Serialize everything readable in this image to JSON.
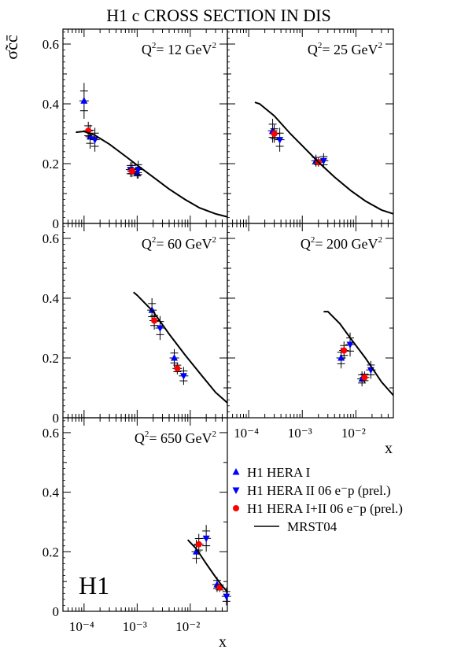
{
  "title": "H1 c  CROSS SECTION IN DIS",
  "ylabel": "σ̃cc̄",
  "xlabel": "x",
  "logo": "H1",
  "legend": [
    {
      "label": "H1 HERA I",
      "marker": "triangle-up",
      "color": "#0000ff"
    },
    {
      "label": "H1 HERA II 06 e⁻p (prel.)",
      "marker": "triangle-down",
      "color": "#0000ff"
    },
    {
      "label": "H1 HERA I+II 06 e⁻p (prel.)",
      "marker": "circle",
      "color": "#ff0000"
    },
    {
      "label": "MRST04",
      "marker": "line",
      "color": "#000000"
    }
  ],
  "y_ticks": [
    "0",
    "0.2",
    "0.4",
    "0.6"
  ],
  "x_ticks": [
    "10⁻⁴",
    "10⁻³",
    "10⁻²"
  ],
  "chart_data": [
    {
      "type": "scatter",
      "panel": "Q2=12",
      "label_base": "Q",
      "label_exp": "2",
      "label_value": "= 12 GeV",
      "label_unit_exp": "2",
      "xscale": "log",
      "xlim": [
        4e-05,
        0.05
      ],
      "ylim": [
        0,
        0.65
      ],
      "series": [
        {
          "name": "H1 HERA I",
          "points": [
            [
              0.0001,
              0.41,
              0.06
            ],
            [
              0.00013,
              0.29,
              0.04
            ],
            [
              0.0008,
              0.18,
              0.025
            ],
            [
              0.001,
              0.17,
              0.02
            ]
          ]
        },
        {
          "name": "H1 HERA II 06 e⁻p (prel.)",
          "points": [
            [
              0.00016,
              0.28,
              0.04
            ],
            [
              0.00075,
              0.18,
              0.025
            ],
            [
              0.00105,
              0.18,
              0.03
            ]
          ]
        },
        {
          "name": "H1 HERA I+II 06 e⁻p (prel.)",
          "points": [
            [
              0.00012,
              0.31,
              0.03
            ],
            [
              0.0008,
              0.175,
              0.015
            ]
          ]
        },
        {
          "name": "MRST04",
          "curve": [
            [
              7e-05,
              0.305
            ],
            [
              0.0001,
              0.308
            ],
            [
              0.00016,
              0.295
            ],
            [
              0.0003,
              0.265
            ],
            [
              0.0006,
              0.225
            ],
            [
              0.001,
              0.195
            ],
            [
              0.002,
              0.155
            ],
            [
              0.004,
              0.115
            ],
            [
              0.008,
              0.08
            ],
            [
              0.015,
              0.052
            ],
            [
              0.03,
              0.032
            ],
            [
              0.05,
              0.022
            ]
          ]
        }
      ]
    },
    {
      "type": "scatter",
      "panel": "Q2=25",
      "label_base": "Q",
      "label_exp": "2",
      "label_value": "= 25 GeV",
      "label_unit_exp": "2",
      "xscale": "log",
      "xlim": [
        4e-05,
        0.05
      ],
      "ylim": [
        0,
        0.65
      ],
      "series": [
        {
          "name": "H1 HERA I",
          "points": [
            [
              0.00028,
              0.31,
              0.04
            ],
            [
              0.0018,
              0.21,
              0.02
            ]
          ]
        },
        {
          "name": "H1 HERA II 06 e⁻p (prel.)",
          "points": [
            [
              0.00038,
              0.28,
              0.04
            ],
            [
              0.0025,
              0.21,
              0.025
            ]
          ]
        },
        {
          "name": "H1 HERA I+II 06 e⁻p (prel.)",
          "points": [
            [
              0.0003,
              0.3,
              0.03
            ],
            [
              0.002,
              0.205,
              0.015
            ]
          ]
        },
        {
          "name": "MRST04",
          "curve": [
            [
              0.00013,
              0.405
            ],
            [
              0.00016,
              0.4
            ],
            [
              0.0003,
              0.36
            ],
            [
              0.0006,
              0.3
            ],
            [
              0.001,
              0.26
            ],
            [
              0.002,
              0.205
            ],
            [
              0.004,
              0.155
            ],
            [
              0.008,
              0.11
            ],
            [
              0.015,
              0.075
            ],
            [
              0.03,
              0.045
            ],
            [
              0.05,
              0.032
            ]
          ]
        }
      ]
    },
    {
      "type": "scatter",
      "panel": "Q2=60",
      "label_base": "Q",
      "label_exp": "2",
      "label_value": "= 60 GeV",
      "label_unit_exp": "2",
      "xscale": "log",
      "xlim": [
        4e-05,
        0.05
      ],
      "ylim": [
        0,
        0.65
      ],
      "series": [
        {
          "name": "H1 HERA I",
          "points": [
            [
              0.0019,
              0.36,
              0.04
            ],
            [
              0.005,
              0.2,
              0.03
            ]
          ]
        },
        {
          "name": "H1 HERA II 06 e⁻p (prel.)",
          "points": [
            [
              0.0027,
              0.3,
              0.04
            ],
            [
              0.0075,
              0.14,
              0.03
            ]
          ]
        },
        {
          "name": "H1 HERA I+II 06 e⁻p (prel.)",
          "points": [
            [
              0.0021,
              0.325,
              0.03
            ],
            [
              0.0057,
              0.165,
              0.02
            ]
          ]
        },
        {
          "name": "MRST04",
          "curve": [
            [
              0.00085,
              0.42
            ],
            [
              0.001,
              0.41
            ],
            [
              0.002,
              0.355
            ],
            [
              0.004,
              0.28
            ],
            [
              0.008,
              0.21
            ],
            [
              0.015,
              0.15
            ],
            [
              0.03,
              0.085
            ],
            [
              0.05,
              0.05
            ]
          ]
        }
      ]
    },
    {
      "type": "scatter",
      "panel": "Q2=200",
      "label_base": "Q",
      "label_exp": "2",
      "label_value": "= 200 GeV",
      "label_unit_exp": "2",
      "xscale": "log",
      "xlim": [
        4e-05,
        0.05
      ],
      "ylim": [
        0,
        0.65
      ],
      "series": [
        {
          "name": "H1 HERA I",
          "points": [
            [
              0.0053,
              0.2,
              0.035
            ],
            [
              0.013,
              0.13,
              0.025
            ]
          ]
        },
        {
          "name": "H1 HERA II 06 e⁻p (prel.)",
          "points": [
            [
              0.0078,
              0.245,
              0.04
            ],
            [
              0.019,
              0.16,
              0.03
            ]
          ]
        },
        {
          "name": "H1 HERA I+II 06 e⁻p (prel.)",
          "points": [
            [
              0.006,
              0.225,
              0.03
            ],
            [
              0.0145,
              0.135,
              0.02
            ]
          ]
        },
        {
          "name": "MRST04",
          "curve": [
            [
              0.0025,
              0.355
            ],
            [
              0.003,
              0.355
            ],
            [
              0.005,
              0.315
            ],
            [
              0.008,
              0.265
            ],
            [
              0.015,
              0.2
            ],
            [
              0.03,
              0.12
            ],
            [
              0.05,
              0.075
            ]
          ]
        }
      ]
    },
    {
      "type": "scatter",
      "panel": "Q2=650",
      "label_base": "Q",
      "label_exp": "2",
      "label_value": "= 650 GeV",
      "label_unit_exp": "2",
      "xscale": "log",
      "xlim": [
        4e-05,
        0.05
      ],
      "ylim": [
        0,
        0.65
      ],
      "series": [
        {
          "name": "H1 HERA I",
          "points": [
            [
              0.013,
              0.2,
              0.04
            ],
            [
              0.032,
              0.09,
              0.025
            ]
          ]
        },
        {
          "name": "H1 HERA II 06 e⁻p (prel.)",
          "points": [
            [
              0.02,
              0.245,
              0.045
            ],
            [
              0.048,
              0.05,
              0.03
            ]
          ]
        },
        {
          "name": "H1 HERA I+II 06 e⁻p (prel.)",
          "points": [
            [
              0.0145,
              0.225,
              0.035
            ],
            [
              0.036,
              0.08,
              0.015
            ]
          ]
        },
        {
          "name": "MRST04",
          "curve": [
            [
              0.009,
              0.24
            ],
            [
              0.013,
              0.21
            ],
            [
              0.02,
              0.16
            ],
            [
              0.03,
              0.115
            ],
            [
              0.04,
              0.085
            ],
            [
              0.05,
              0.065
            ]
          ]
        }
      ]
    }
  ]
}
